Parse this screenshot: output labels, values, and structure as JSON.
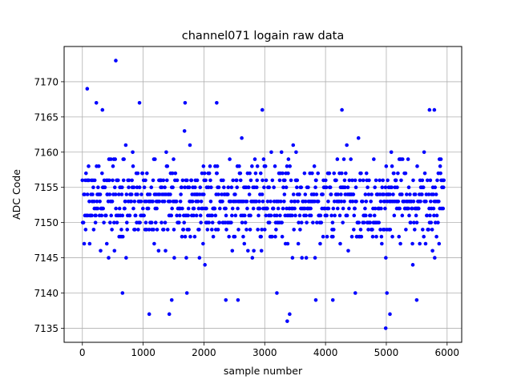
{
  "chart_data": {
    "type": "scatter",
    "title": "channel071 logain raw data",
    "xlabel": "sample number",
    "ylabel": "ADC Code",
    "xlim": [
      -300,
      6240
    ],
    "ylim": [
      7133,
      7175
    ],
    "xticks": [
      0,
      1000,
      2000,
      3000,
      4000,
      5000,
      6000
    ],
    "yticks": [
      7135,
      7140,
      7145,
      7150,
      7155,
      7160,
      7165,
      7170
    ],
    "grid": true,
    "marker_color": "#0000ff",
    "series": [
      {
        "n_samples": 6000,
        "x_range": [
          0,
          5950
        ],
        "y_range": [
          7135,
          7173
        ],
        "core_range": [
          7146,
          7159
        ],
        "outliers": [
          {
            "x": 550,
            "y": 7173
          },
          {
            "x": 80,
            "y": 7169
          },
          {
            "x": 230,
            "y": 7167
          },
          {
            "x": 330,
            "y": 7166
          },
          {
            "x": 940,
            "y": 7167
          },
          {
            "x": 1690,
            "y": 7167
          },
          {
            "x": 2210,
            "y": 7167
          },
          {
            "x": 2960,
            "y": 7166
          },
          {
            "x": 4270,
            "y": 7166
          },
          {
            "x": 5710,
            "y": 7166
          },
          {
            "x": 5790,
            "y": 7166
          },
          {
            "x": 3370,
            "y": 7136
          },
          {
            "x": 3410,
            "y": 7137
          },
          {
            "x": 4990,
            "y": 7135
          },
          {
            "x": 5060,
            "y": 7137
          },
          {
            "x": 1100,
            "y": 7137
          },
          {
            "x": 1430,
            "y": 7137
          },
          {
            "x": 660,
            "y": 7140
          },
          {
            "x": 1720,
            "y": 7140
          },
          {
            "x": 5010,
            "y": 7140
          },
          {
            "x": 3200,
            "y": 7140
          },
          {
            "x": 4490,
            "y": 7140
          },
          {
            "x": 5500,
            "y": 7139
          },
          {
            "x": 1470,
            "y": 7139
          },
          {
            "x": 2360,
            "y": 7139
          },
          {
            "x": 2560,
            "y": 7139
          },
          {
            "x": 3840,
            "y": 7139
          },
          {
            "x": 4120,
            "y": 7139
          }
        ]
      }
    ]
  }
}
